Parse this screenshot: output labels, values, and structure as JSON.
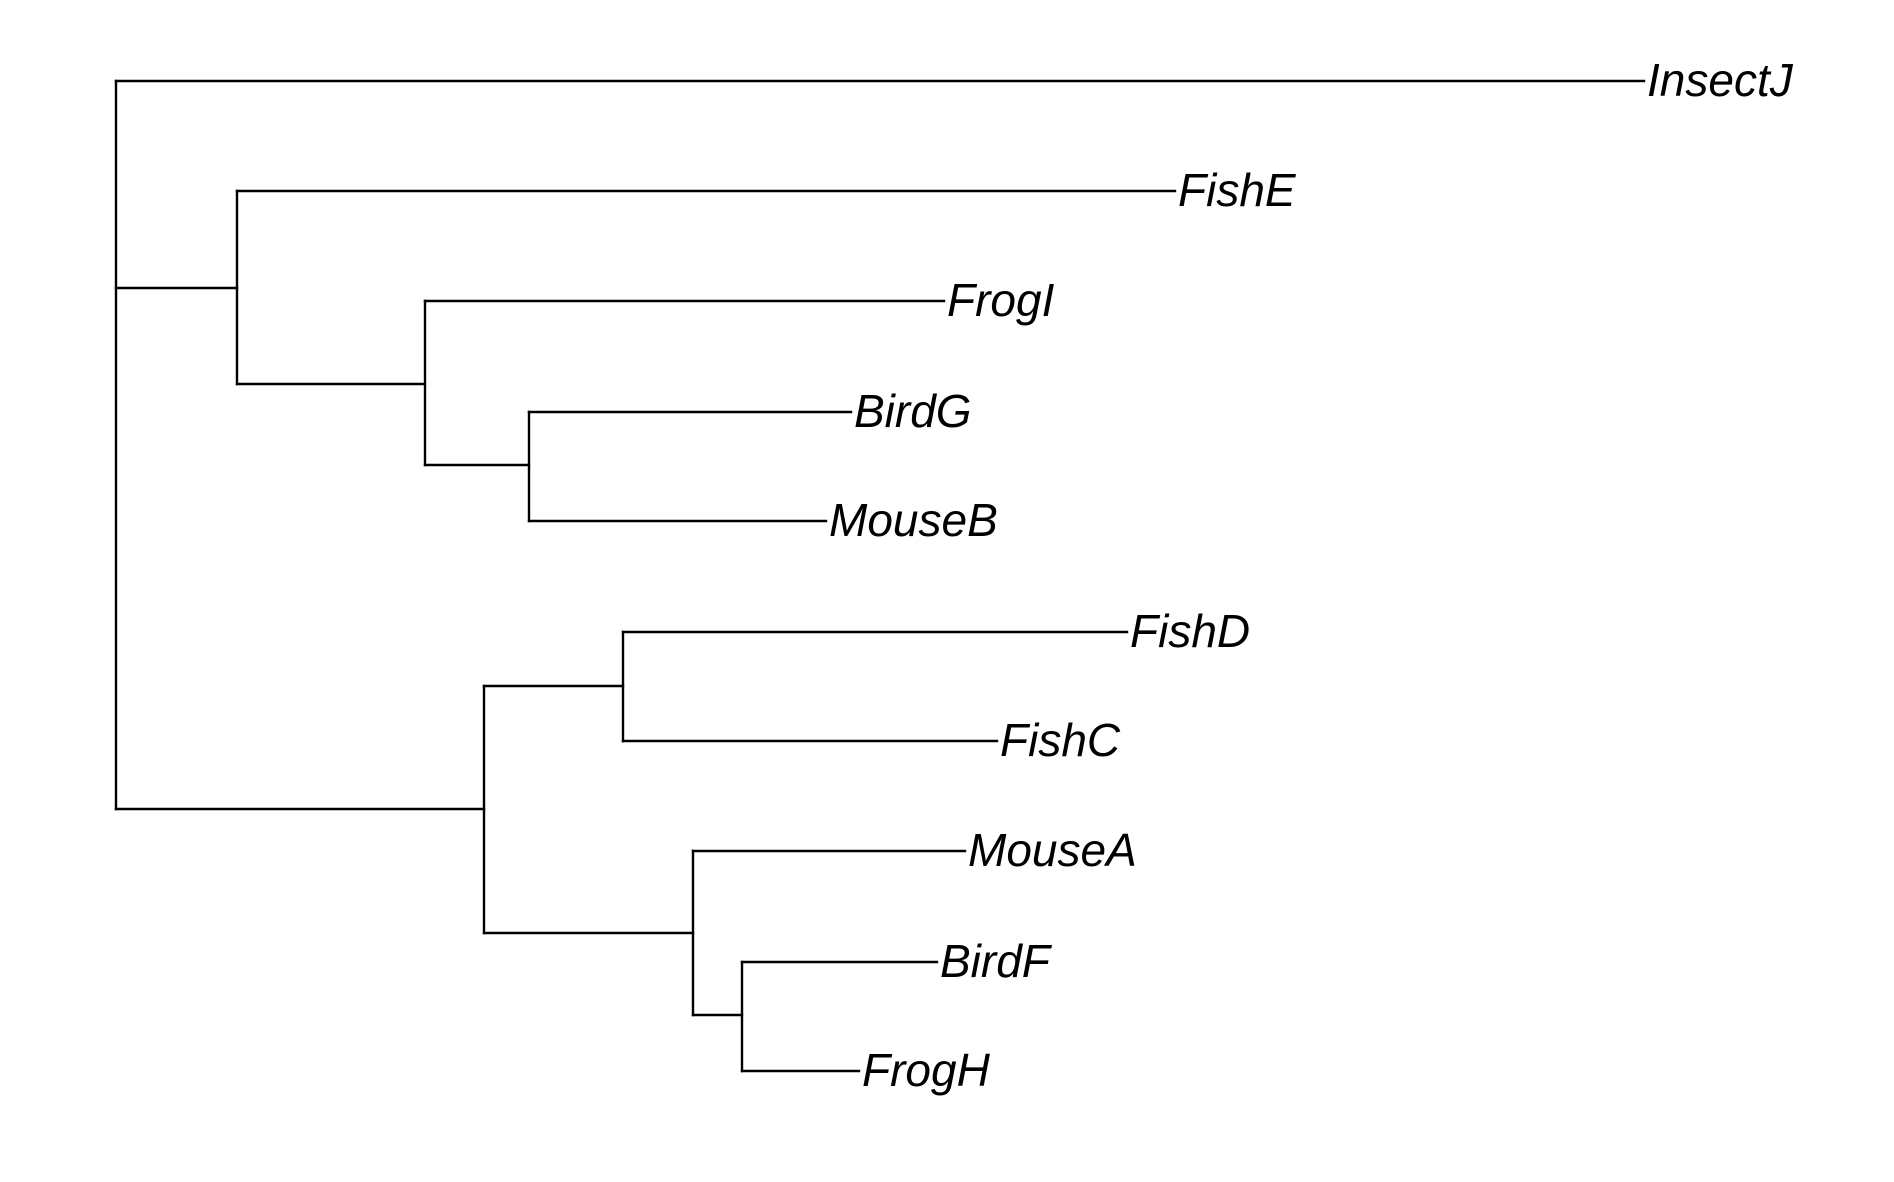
{
  "diagram": {
    "type": "phylogenetic-tree",
    "tips": [
      "InsectJ",
      "FishE",
      "FrogI",
      "BirdG",
      "MouseB",
      "FishD",
      "FishC",
      "MouseA",
      "BirdF",
      "FrogH"
    ],
    "newick": "(InsectJ,(FishE,(FrogI,(BirdG,MouseB))),((FishD,FishC),(MouseA,(BirdF,FrogH))));"
  }
}
